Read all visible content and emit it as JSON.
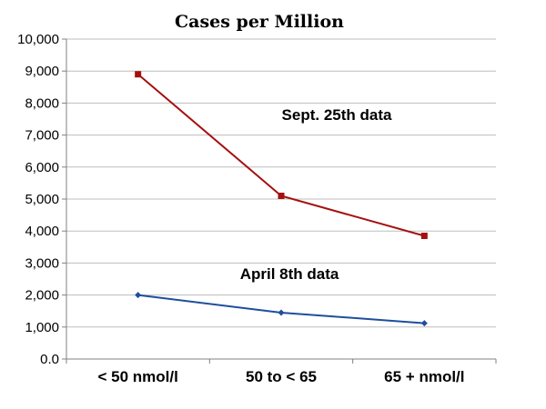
{
  "chart_data": {
    "type": "line",
    "title": "Cases per Million",
    "categories": [
      "< 50 nmol/l",
      "50 to < 65",
      "65 + nmol/l"
    ],
    "ylim": [
      0,
      10000
    ],
    "yticks": [
      0,
      1000,
      2000,
      3000,
      4000,
      5000,
      6000,
      7000,
      8000,
      9000,
      10000
    ],
    "ytick_labels": [
      "0.0",
      "1,000",
      "2,000",
      "3,000",
      "4,000",
      "5,000",
      "6,000",
      "7,000",
      "8,000",
      "9,000",
      "10,000"
    ],
    "grid": true,
    "series": [
      {
        "name": "Sept. 25th data",
        "values": [
          8900,
          5100,
          3850
        ],
        "color": "#a50f0f",
        "marker": "square"
      },
      {
        "name": "April 8th data",
        "values": [
          2000,
          1450,
          1120
        ],
        "color": "#1f4e9c",
        "marker": "diamond"
      }
    ]
  }
}
